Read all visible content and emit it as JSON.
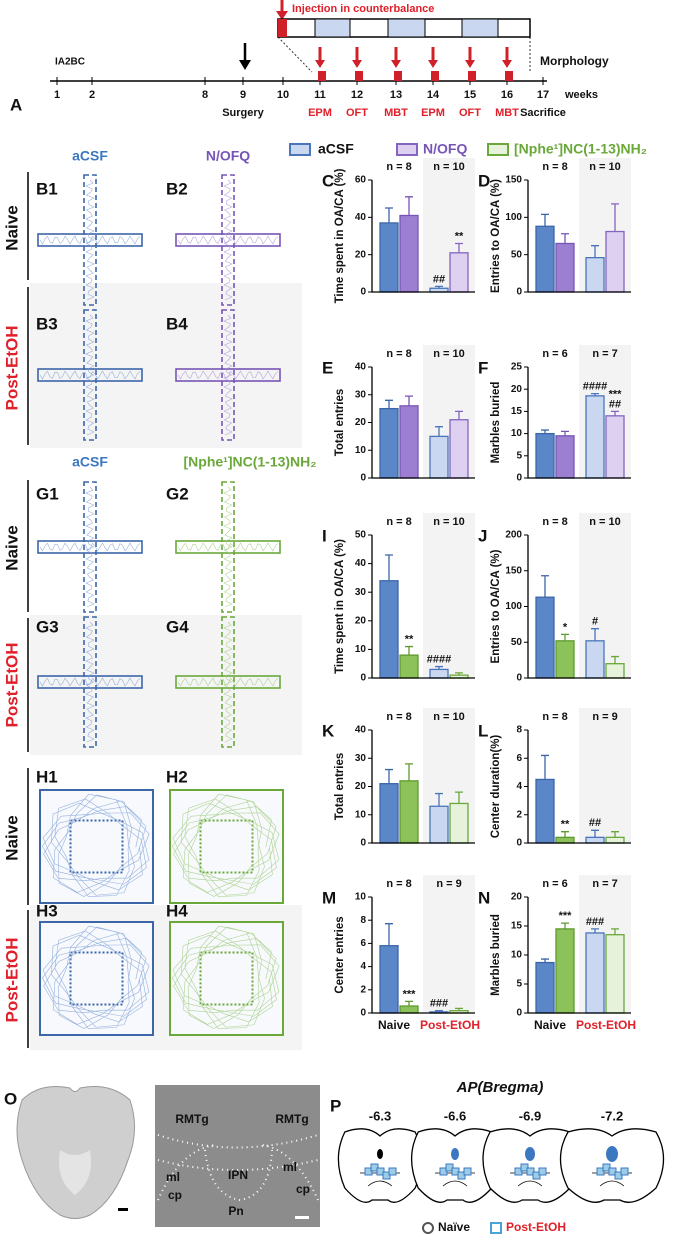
{
  "panel_a": {
    "label": "A",
    "injection": "Injection in counterbalance",
    "start": "IA2BC",
    "end": "Morphology",
    "axis_unit": "weeks",
    "weeks": [
      1,
      2,
      8,
      9,
      10,
      11,
      12,
      13,
      14,
      15,
      16,
      17
    ],
    "surgery": "Surgery",
    "sacrifice": "Sacrifice",
    "tests": [
      "EPM",
      "OFT",
      "MBT",
      "EPM",
      "OFT",
      "MBT"
    ]
  },
  "legend": [
    "aCSF",
    "N/OFQ",
    "[Nphe¹]NC(1-13)NH₂"
  ],
  "panel_b": {
    "columns": [
      "aCSF",
      "N/OFQ"
    ],
    "rows": [
      "Naive",
      "Post-EtOH"
    ],
    "labels": [
      "B1",
      "B2",
      "B3",
      "B4"
    ]
  },
  "panel_g": {
    "columns": [
      "aCSF",
      "[Nphe¹]NC(1-13)NH₂"
    ],
    "rows": [
      "Naive",
      "Post-EtOH"
    ],
    "labels": [
      "G1",
      "G2",
      "G3",
      "G4"
    ]
  },
  "panel_h": {
    "rows": [
      "Naive",
      "Post-EtOH"
    ],
    "labels": [
      "H1",
      "H2",
      "H3",
      "H4"
    ]
  },
  "chart_data": [
    {
      "type": "bar",
      "label": "C",
      "ylabel": "Time spent in OA/CA (%)",
      "n_labels": [
        "n = 8",
        "n = 10"
      ],
      "values": [
        37,
        41,
        2,
        21
      ],
      "errors": [
        8,
        10,
        1,
        5
      ],
      "colors": [
        "#5b87c9",
        "#9d7fd1",
        "#c9d8f0",
        "#ddd0f0"
      ],
      "edge_colors": [
        "#3c66a8",
        "#7655b5",
        "#4a75ba",
        "#8466c0"
      ],
      "ylim": [
        0,
        60
      ],
      "yticks": [
        0,
        20,
        40,
        60
      ],
      "annotations": [
        [],
        [],
        [
          "##"
        ],
        [
          "**"
        ]
      ]
    },
    {
      "type": "bar",
      "label": "D",
      "ylabel": "Entries to OA/CA (%)",
      "n_labels": [
        "n = 8",
        "n = 10"
      ],
      "values": [
        88,
        65,
        46,
        81
      ],
      "errors": [
        16,
        13,
        16,
        37
      ],
      "colors": [
        "#5b87c9",
        "#9d7fd1",
        "#c9d8f0",
        "#ddd0f0"
      ],
      "edge_colors": [
        "#3c66a8",
        "#7655b5",
        "#4a75ba",
        "#8466c0"
      ],
      "ylim": [
        0,
        150
      ],
      "yticks": [
        0,
        50,
        100,
        150
      ],
      "annotations": [
        [],
        [],
        [],
        []
      ]
    },
    {
      "type": "bar",
      "label": "E",
      "ylabel": "Total entries",
      "n_labels": [
        "n = 8",
        "n = 10"
      ],
      "values": [
        25,
        26,
        15,
        21
      ],
      "errors": [
        3,
        3.5,
        3.5,
        3
      ],
      "colors": [
        "#5b87c9",
        "#9d7fd1",
        "#c9d8f0",
        "#ddd0f0"
      ],
      "edge_colors": [
        "#3c66a8",
        "#7655b5",
        "#4a75ba",
        "#8466c0"
      ],
      "ylim": [
        0,
        40
      ],
      "yticks": [
        0,
        10,
        20,
        30,
        40
      ],
      "annotations": [
        [],
        [],
        [],
        []
      ]
    },
    {
      "type": "bar",
      "label": "F",
      "ylabel": "Marbles buried",
      "n_labels": [
        "n = 6",
        "n = 7"
      ],
      "values": [
        10,
        9.5,
        18.5,
        14
      ],
      "errors": [
        0.8,
        1,
        0.5,
        1
      ],
      "colors": [
        "#5b87c9",
        "#9d7fd1",
        "#c9d8f0",
        "#ddd0f0"
      ],
      "edge_colors": [
        "#3c66a8",
        "#7655b5",
        "#4a75ba",
        "#8466c0"
      ],
      "ylim": [
        0,
        25
      ],
      "yticks": [
        0,
        5,
        10,
        15,
        20,
        25
      ],
      "annotations": [
        [],
        [],
        [
          "####"
        ],
        [
          "***",
          "##"
        ]
      ]
    },
    {
      "type": "bar",
      "label": "I",
      "ylabel": "Time spent in OA/CA (%)",
      "n_labels": [
        "n = 8",
        "n = 10"
      ],
      "values": [
        34,
        8,
        3,
        1
      ],
      "errors": [
        9,
        3,
        1,
        0.8
      ],
      "colors": [
        "#5b87c9",
        "#8dc15a",
        "#c9d8f0",
        "#e6f2da"
      ],
      "edge_colors": [
        "#3c66a8",
        "#5f9a2e",
        "#4a75ba",
        "#6aa83a"
      ],
      "ylim": [
        0,
        50
      ],
      "yticks": [
        0,
        10,
        20,
        30,
        40,
        50
      ],
      "annotations": [
        [],
        [
          "**"
        ],
        [
          "####"
        ],
        []
      ]
    },
    {
      "type": "bar",
      "label": "J",
      "ylabel": "Entries to OA/CA (%)",
      "n_labels": [
        "n = 8",
        "n = 10"
      ],
      "values": [
        113,
        52,
        52,
        20
      ],
      "errors": [
        30,
        9,
        17,
        10
      ],
      "colors": [
        "#5b87c9",
        "#8dc15a",
        "#c9d8f0",
        "#e6f2da"
      ],
      "edge_colors": [
        "#3c66a8",
        "#5f9a2e",
        "#4a75ba",
        "#6aa83a"
      ],
      "ylim": [
        0,
        200
      ],
      "yticks": [
        0,
        50,
        100,
        150,
        200
      ],
      "annotations": [
        [],
        [
          "*"
        ],
        [
          "#"
        ],
        []
      ]
    },
    {
      "type": "bar",
      "label": "K",
      "ylabel": "Total entries",
      "n_labels": [
        "n = 8",
        "n = 10"
      ],
      "values": [
        21,
        22,
        13,
        14
      ],
      "errors": [
        5,
        6,
        4.5,
        4
      ],
      "colors": [
        "#5b87c9",
        "#8dc15a",
        "#c9d8f0",
        "#e6f2da"
      ],
      "edge_colors": [
        "#3c66a8",
        "#5f9a2e",
        "#4a75ba",
        "#6aa83a"
      ],
      "ylim": [
        0,
        40
      ],
      "yticks": [
        0,
        10,
        20,
        30,
        40
      ],
      "annotations": [
        [],
        [],
        [],
        []
      ]
    },
    {
      "type": "bar",
      "label": "L",
      "ylabel": "Center duration(%)",
      "n_labels": [
        "n = 8",
        "n = 9"
      ],
      "values": [
        4.5,
        0.4,
        0.4,
        0.4
      ],
      "errors": [
        1.7,
        0.4,
        0.5,
        0.4
      ],
      "colors": [
        "#5b87c9",
        "#8dc15a",
        "#c9d8f0",
        "#e6f2da"
      ],
      "edge_colors": [
        "#3c66a8",
        "#5f9a2e",
        "#4a75ba",
        "#6aa83a"
      ],
      "ylim": [
        0,
        8
      ],
      "yticks": [
        0,
        2,
        4,
        6,
        8
      ],
      "annotations": [
        [],
        [
          "**"
        ],
        [
          "##"
        ],
        []
      ]
    },
    {
      "type": "bar",
      "label": "M",
      "ylabel": "Center entries",
      "n_labels": [
        "n = 8",
        "n = 9"
      ],
      "values": [
        5.8,
        0.6,
        0.1,
        0.2
      ],
      "errors": [
        1.9,
        0.4,
        0.1,
        0.2
      ],
      "colors": [
        "#5b87c9",
        "#8dc15a",
        "#c9d8f0",
        "#e6f2da"
      ],
      "edge_colors": [
        "#3c66a8",
        "#5f9a2e",
        "#4a75ba",
        "#6aa83a"
      ],
      "ylim": [
        0,
        10
      ],
      "yticks": [
        0,
        2,
        4,
        6,
        8,
        10
      ],
      "annotations": [
        [],
        [
          "***"
        ],
        [
          "###"
        ],
        []
      ],
      "groups": [
        "Naive",
        "Post-EtOH"
      ]
    },
    {
      "type": "bar",
      "label": "N",
      "ylabel": "Marbles buried",
      "n_labels": [
        "n = 6",
        "n = 7"
      ],
      "values": [
        8.7,
        14.5,
        13.8,
        13.5
      ],
      "errors": [
        0.6,
        1,
        0.7,
        1
      ],
      "colors": [
        "#5b87c9",
        "#8dc15a",
        "#c9d8f0",
        "#e6f2da"
      ],
      "edge_colors": [
        "#3c66a8",
        "#5f9a2e",
        "#4a75ba",
        "#6aa83a"
      ],
      "ylim": [
        0,
        20
      ],
      "yticks": [
        0,
        5,
        10,
        15,
        20
      ],
      "annotations": [
        [],
        [
          "***"
        ],
        [
          "###"
        ],
        []
      ],
      "groups": [
        "Naive",
        "Post-EtOH"
      ]
    }
  ],
  "panel_o": {
    "label": "O",
    "regions": [
      "RMTg",
      "RMTg",
      "ml",
      "ml",
      "cp",
      "cp",
      "IPN",
      "Pn"
    ]
  },
  "panel_p": {
    "label": "P",
    "title": "AP(Bregma)",
    "sections": [
      -6.3,
      -6.6,
      -6.9,
      -7.2
    ],
    "legend": [
      "Naïve",
      "Post-EtOH"
    ]
  }
}
